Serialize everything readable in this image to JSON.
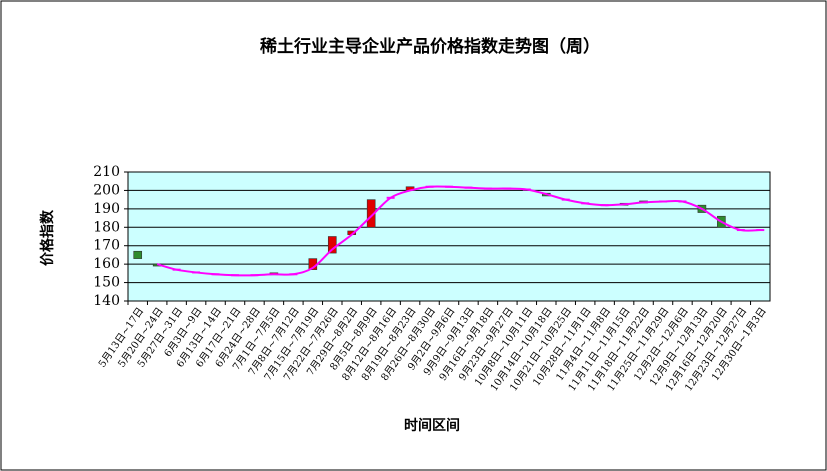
{
  "chart_data": {
    "type": "candlestick",
    "title": "稀土行业主导企业产品价格指数走势图（周）",
    "ylabel": "价格指数",
    "xlabel": "时间区间",
    "categories": [
      "5月13日~17日",
      "5月20日~24日",
      "5月27日~31日",
      "6月3日~9日",
      "6月13日~14日",
      "6月17日~21日",
      "6月24日~28日",
      "7月1日~7月5日",
      "7月8日~7月12日",
      "7月15日~7月19日",
      "7月22日~7月26日",
      "7月29日~8月2日",
      "8月5日~8月9日",
      "8月12日~8月16日",
      "8月19日~8月23日",
      "8月26日~8月30日",
      "9月2日~9月6日",
      "9月9日~9月13日",
      "9月16日~9月18日",
      "9月23日~9月27日",
      "10月8日~10月11日",
      "10月14日~10月18日",
      "10月21日~10月25日",
      "10月28日~11月1日",
      "11月4日~11月8日",
      "11月11日~11月15日",
      "11月18日~11月22日",
      "11月25日~11月29日",
      "12月2日~12月6日",
      "12月9日~12月13日",
      "12月16日~12月20日",
      "12月23日~12月27日",
      "12月30日~1月3日"
    ],
    "open": [
      167,
      160,
      157,
      155.5,
      154.5,
      154,
      154,
      154.5,
      154.5,
      157,
      166,
      176,
      180,
      196,
      200,
      202,
      202,
      201.5,
      201,
      201,
      200.5,
      198.5,
      195,
      193,
      192,
      193,
      194,
      194,
      194,
      192,
      186,
      178.5,
      178.5
    ],
    "close": [
      163,
      159,
      157,
      155.5,
      154.5,
      154,
      154,
      155,
      154.5,
      163,
      175,
      178,
      195,
      196,
      202,
      202,
      202,
      201.5,
      201,
      201,
      200.5,
      197,
      195,
      193,
      192,
      192,
      193.5,
      194,
      194,
      188,
      180,
      178.5,
      178.5
    ],
    "values": [
      null,
      160,
      157,
      155.5,
      154.5,
      154,
      154,
      154.5,
      154.5,
      158,
      168,
      176,
      186,
      196,
      200,
      202,
      202,
      201.5,
      201,
      201,
      200.5,
      198,
      195,
      193,
      192,
      192.5,
      193.5,
      194,
      194,
      190,
      183,
      178.5,
      178.5
    ],
    "line_color": "#ff00ff",
    "up_color": "#e00000",
    "down_color": "#2e8b2e",
    "plot_background": "#ccffff",
    "ylim": [
      140,
      210
    ],
    "yticks": [
      140,
      150,
      160,
      170,
      180,
      190,
      200,
      210
    ],
    "grid": true
  }
}
